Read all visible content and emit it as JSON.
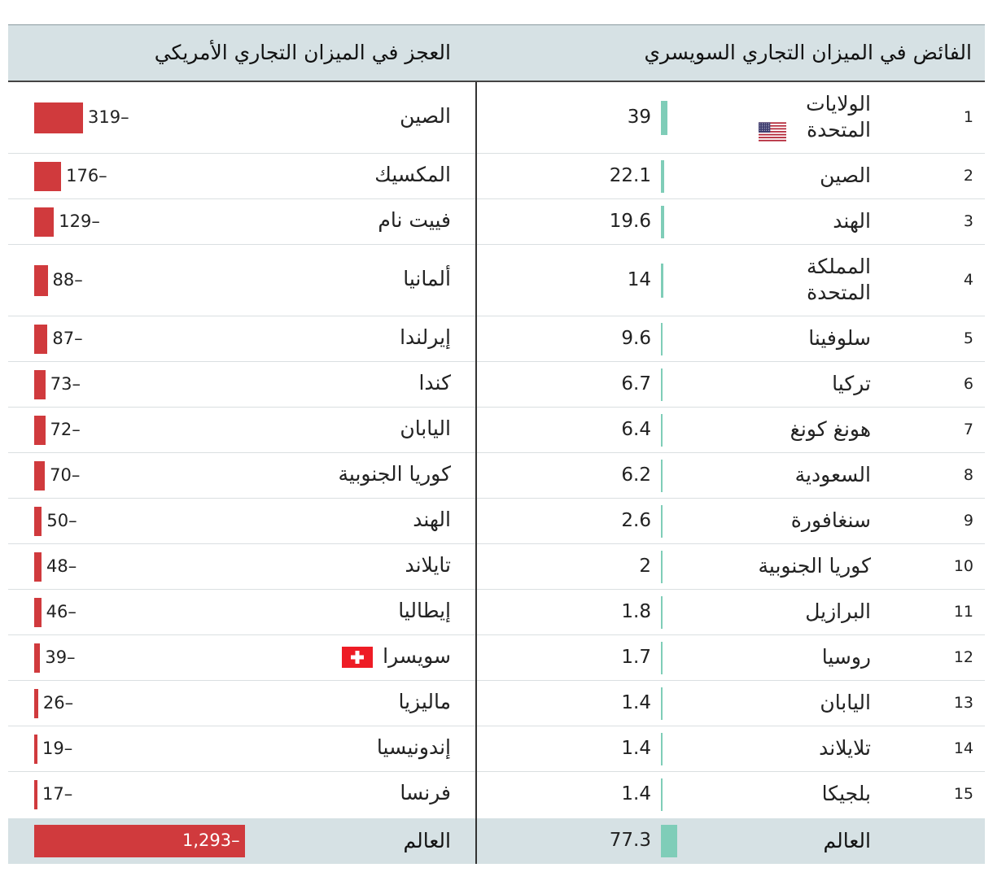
{
  "chart_data": [
    {
      "type": "table",
      "title": "الفائض في الميزان التجاري السويسري",
      "rows": [
        {
          "rank": "1",
          "country": "الولايات المتحدة",
          "value": 39,
          "label": "39",
          "flag": "us-flag-icon"
        },
        {
          "rank": "2",
          "country": "الصين",
          "value": 22.1,
          "label": "22.1"
        },
        {
          "rank": "3",
          "country": "الهند",
          "value": 19.6,
          "label": "19.6"
        },
        {
          "rank": "4",
          "country": "المملكة المتحدة",
          "value": 14,
          "label": "14"
        },
        {
          "rank": "5",
          "country": "سلوفينا",
          "value": 9.6,
          "label": "9.6"
        },
        {
          "rank": "6",
          "country": "تركيا",
          "value": 6.7,
          "label": "6.7"
        },
        {
          "rank": "7",
          "country": "هونغ كونغ",
          "value": 6.4,
          "label": "6.4"
        },
        {
          "rank": "8",
          "country": "السعودية",
          "value": 6.2,
          "label": "6.2"
        },
        {
          "rank": "9",
          "country": "سنغافورة",
          "value": 2.6,
          "label": "2.6"
        },
        {
          "rank": "10",
          "country": "كوريا الجنوبية",
          "value": 2,
          "label": "2"
        },
        {
          "rank": "11",
          "country": "البرازيل",
          "value": 1.8,
          "label": "1.8"
        },
        {
          "rank": "12",
          "country": "روسيا",
          "value": 1.7,
          "label": "1.7"
        },
        {
          "rank": "13",
          "country": "اليابان",
          "value": 1.4,
          "label": "1.4"
        },
        {
          "rank": "14",
          "country": "تلايلاند",
          "value": 1.4,
          "label": "1.4"
        },
        {
          "rank": "15",
          "country": "بلجيكا",
          "value": 1.4,
          "label": "1.4"
        }
      ],
      "total": {
        "country": "العالم",
        "value": 77.3,
        "label": "77.3"
      }
    },
    {
      "type": "table",
      "title": "العجز في الميزان التجاري الأمريكي",
      "rows": [
        {
          "country": "الصين",
          "value": -319,
          "label": "319–"
        },
        {
          "country": "المكسيك",
          "value": -176,
          "label": "176–"
        },
        {
          "country": "فييت نام",
          "value": -129,
          "label": "129–"
        },
        {
          "country": "ألمانيا",
          "value": -88,
          "label": "88–"
        },
        {
          "country": "إيرلندا",
          "value": -87,
          "label": "87–"
        },
        {
          "country": "كندا",
          "value": -73,
          "label": "73–"
        },
        {
          "country": "اليابان",
          "value": -72,
          "label": "72–"
        },
        {
          "country": "كوريا الجنوبية",
          "value": -70,
          "label": "70–"
        },
        {
          "country": "الهند",
          "value": -50,
          "label": "50–"
        },
        {
          "country": "تايلاند",
          "value": -48,
          "label": "48–"
        },
        {
          "country": "إيطاليا",
          "value": -46,
          "label": "46–"
        },
        {
          "country": "سويسرا",
          "value": -39,
          "label": "39–",
          "flag": "swiss-flag-icon"
        },
        {
          "country": "ماليزيا",
          "value": -26,
          "label": "26–"
        },
        {
          "country": "إندونيسيا",
          "value": -19,
          "label": "19–"
        },
        {
          "country": "فرنسا",
          "value": -17,
          "label": "17–"
        }
      ],
      "total": {
        "country": "العالم",
        "value": -1293,
        "label": "1,293–"
      }
    }
  ],
  "colors": {
    "surplus_bar": "#7fcdb8",
    "deficit_bar": "#d03a3d",
    "header_bg": "#d6e1e4",
    "row_separator": "#dadfe1"
  }
}
